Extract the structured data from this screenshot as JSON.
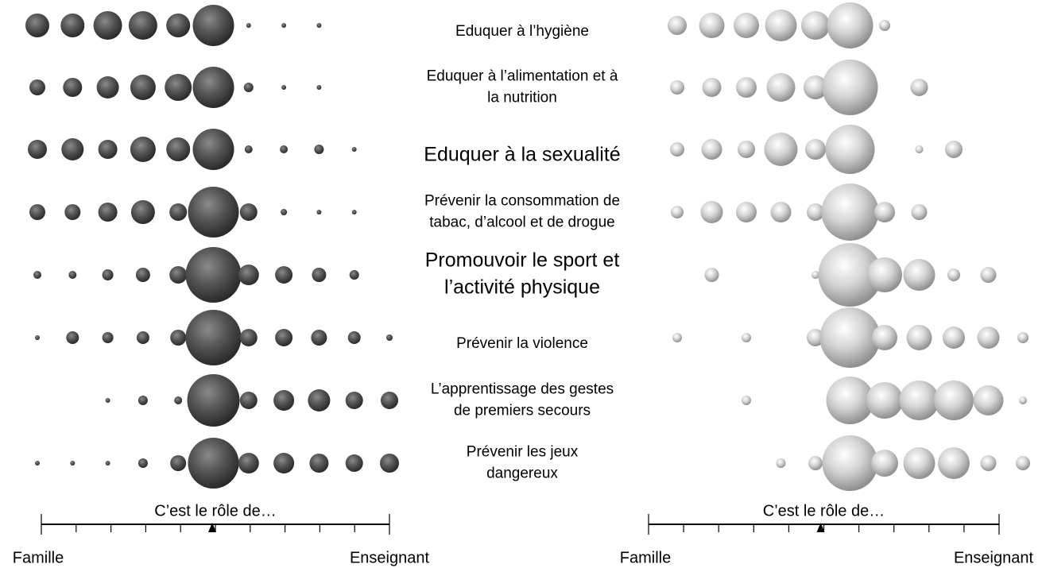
{
  "chart_data": {
    "type": "bubble",
    "rows": [
      [
        "Eduquer à l’hygiène"
      ],
      [
        "Eduquer à l’alimentation et à",
        "la nutrition"
      ],
      [
        "Eduquer à la sexualité"
      ],
      [
        "Prévenir la consommation de",
        "tabac, d’alcool et de drogue"
      ],
      [
        "Promouvoir le sport et",
        "l’activité physique"
      ],
      [
        "Prévenir la violence"
      ],
      [
        "L’apprentissage des gestes",
        "de premiers secours"
      ],
      [
        "Prévenir les jeux",
        "dangereux"
      ]
    ],
    "scale_title": "C’est le rôle de…",
    "scale_left": "Famille",
    "scale_right": "Enseignant",
    "scale_marker": 5,
    "scale_steps": 10,
    "series": [
      {
        "color": "#555555",
        "sizes": [
          [
            30,
            30,
            36,
            36,
            30,
            52,
            6,
            6,
            6,
            0,
            0
          ],
          [
            20,
            24,
            28,
            32,
            34,
            52,
            12,
            6,
            6,
            0,
            0
          ],
          [
            24,
            28,
            24,
            32,
            30,
            52,
            10,
            10,
            12,
            6,
            0
          ],
          [
            20,
            20,
            24,
            30,
            22,
            64,
            22,
            8,
            6,
            6,
            0
          ],
          [
            10,
            10,
            14,
            18,
            22,
            70,
            26,
            22,
            18,
            12,
            0
          ],
          [
            6,
            16,
            14,
            16,
            20,
            70,
            22,
            22,
            20,
            16,
            8
          ],
          [
            0,
            0,
            6,
            12,
            10,
            66,
            22,
            26,
            28,
            22,
            22
          ],
          [
            6,
            6,
            6,
            12,
            20,
            64,
            26,
            26,
            24,
            22,
            24
          ]
        ]
      },
      {
        "color": "#d4d4d4",
        "sizes": [
          [
            24,
            32,
            32,
            40,
            36,
            58,
            14,
            0,
            0,
            0,
            0
          ],
          [
            18,
            24,
            26,
            36,
            30,
            70,
            0,
            22,
            0,
            0,
            0
          ],
          [
            18,
            26,
            22,
            42,
            26,
            62,
            0,
            10,
            22,
            0,
            0
          ],
          [
            16,
            28,
            26,
            26,
            22,
            72,
            26,
            20,
            0,
            0,
            0
          ],
          [
            0,
            18,
            0,
            0,
            10,
            80,
            44,
            40,
            16,
            20,
            0
          ],
          [
            12,
            0,
            12,
            0,
            22,
            76,
            32,
            32,
            28,
            28,
            14
          ],
          [
            0,
            0,
            12,
            0,
            0,
            60,
            46,
            50,
            50,
            38,
            10
          ],
          [
            0,
            0,
            0,
            12,
            18,
            70,
            34,
            40,
            40,
            20,
            18
          ]
        ]
      }
    ]
  }
}
